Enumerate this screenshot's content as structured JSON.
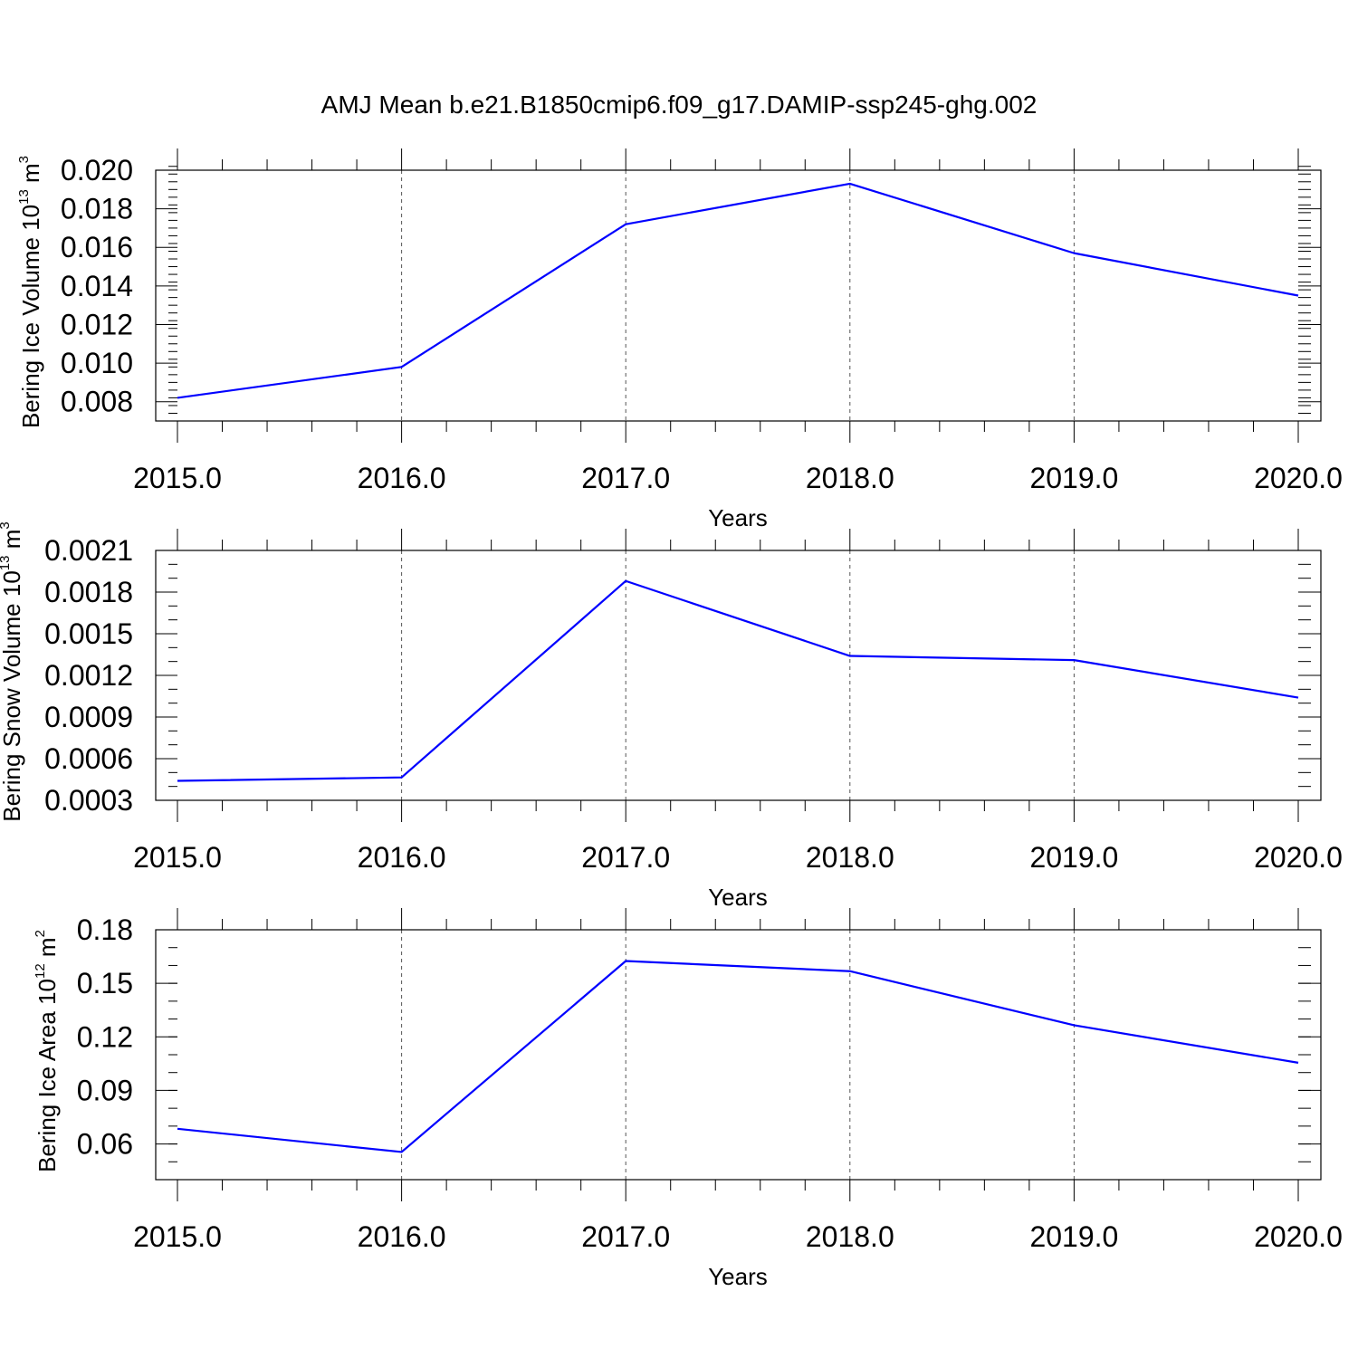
{
  "title": "AMJ Mean b.e21.B1850cmip6.f09_g17.DAMIP-ssp245-ghg.002",
  "line_color": "#0000ff",
  "chart_data": [
    {
      "type": "line",
      "title": "",
      "xlabel": "Years",
      "ylabel_main": "Bering Ice Volume 10",
      "ylabel_exp": "13",
      "ylabel_unit": " m",
      "ylabel_unit_exp": "3",
      "x": [
        2015,
        2016,
        2017,
        2018,
        2019,
        2020
      ],
      "x_tick_labels": [
        "2015.0",
        "2016.0",
        "2017.0",
        "2018.0",
        "2019.0",
        "2020.0"
      ],
      "series": [
        {
          "values": [
            0.0082,
            0.0098,
            0.0172,
            0.0193,
            0.0157,
            0.0135
          ]
        }
      ],
      "ylim": [
        0.007,
        0.02
      ],
      "y_ticks": [
        0.008,
        0.01,
        0.012,
        0.014,
        0.016,
        0.018,
        0.02
      ],
      "y_tick_labels": [
        "0.008",
        "0.010",
        "0.012",
        "0.014",
        "0.016",
        "0.018",
        "0.020"
      ],
      "y_minor_step": 0.0004,
      "grid": "vertical dashed"
    },
    {
      "type": "line",
      "title": "",
      "xlabel": "Years",
      "ylabel_main": "Bering Snow Volume 10",
      "ylabel_exp": "13",
      "ylabel_unit": " m",
      "ylabel_unit_exp": "3",
      "x": [
        2015,
        2016,
        2017,
        2018,
        2019,
        2020
      ],
      "x_tick_labels": [
        "2015.0",
        "2016.0",
        "2017.0",
        "2018.0",
        "2019.0",
        "2020.0"
      ],
      "series": [
        {
          "values": [
            0.00044,
            0.000465,
            0.00188,
            0.00134,
            0.00131,
            0.00104
          ]
        }
      ],
      "ylim": [
        0.0003,
        0.0021
      ],
      "y_ticks": [
        0.0003,
        0.0006,
        0.0009,
        0.0012,
        0.0015,
        0.0018,
        0.0021
      ],
      "y_tick_labels": [
        "0.0003",
        "0.0006",
        "0.0009",
        "0.0012",
        "0.0015",
        "0.0018",
        "0.0021"
      ],
      "y_minor_step": 0.0001,
      "grid": "vertical dashed"
    },
    {
      "type": "line",
      "title": "",
      "xlabel": "Years",
      "ylabel_main": "Bering Ice Area 10",
      "ylabel_exp": "12",
      "ylabel_unit": " m",
      "ylabel_unit_exp": "2",
      "x": [
        2015,
        2016,
        2017,
        2018,
        2019,
        2020
      ],
      "x_tick_labels": [
        "2015.0",
        "2016.0",
        "2017.0",
        "2018.0",
        "2019.0",
        "2020.0"
      ],
      "series": [
        {
          "values": [
            0.0685,
            0.0555,
            0.1625,
            0.1568,
            0.1265,
            0.1055
          ]
        }
      ],
      "ylim": [
        0.04,
        0.18
      ],
      "y_ticks": [
        0.06,
        0.09,
        0.12,
        0.15,
        0.18
      ],
      "y_tick_labels": [
        "0.06",
        "0.09",
        "0.12",
        "0.15",
        "0.18"
      ],
      "y_minor_step": 0.01,
      "grid": "vertical dashed"
    }
  ]
}
